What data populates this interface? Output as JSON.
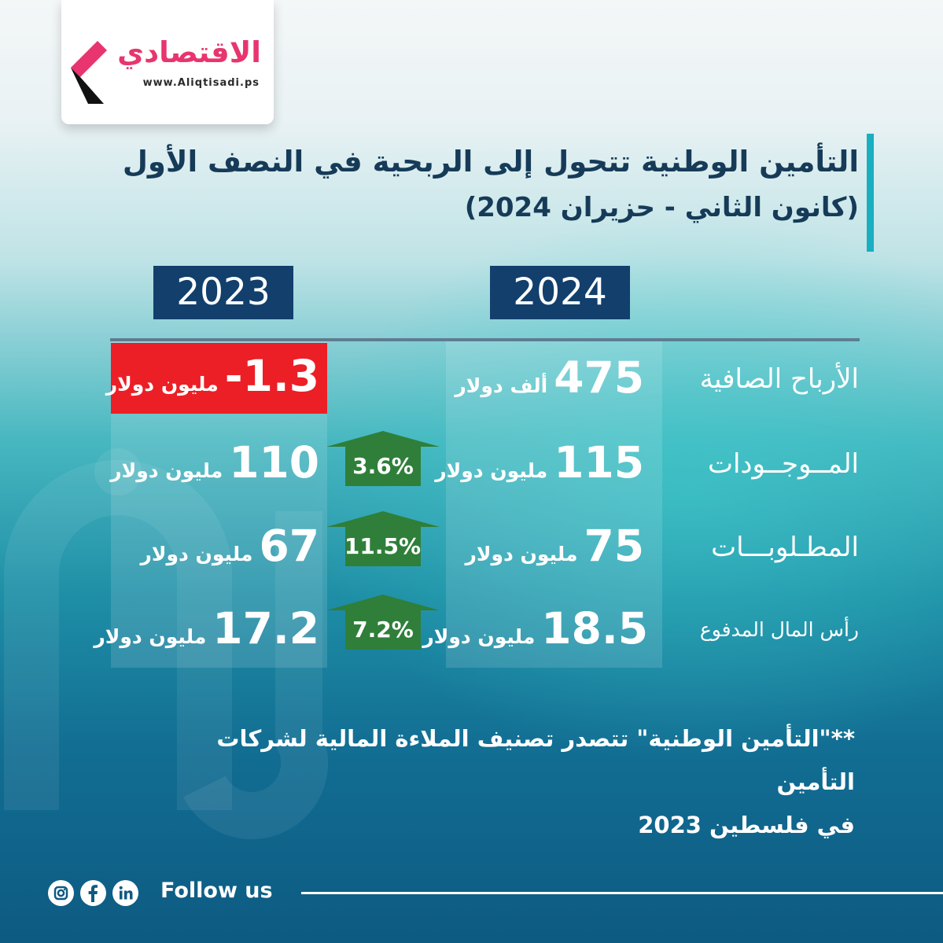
{
  "brand": {
    "name": "الاقتصادي",
    "url": "www.Aliqtisadi.ps",
    "colors": {
      "pink": "#e8356f",
      "navy": "#123f6c",
      "red": "#ec1f26",
      "green": "#2f7f3a"
    }
  },
  "header": {
    "title": "التأمين الوطنية تتحول إلى الربحية في النصف الأول",
    "subtitle": "(كانون الثاني - حزيران 2024)"
  },
  "years": {
    "current": "2024",
    "previous": "2023"
  },
  "rows": [
    {
      "label": "الأرباح الصافية",
      "value_2024": "475",
      "unit_2024": "ألف دولار",
      "value_2023": "1.3-",
      "unit_2023": "مليون دولار",
      "change": null
    },
    {
      "label": "المــوجــودات",
      "value_2024": "115",
      "unit_2024": "مليون دولار",
      "value_2023": "110",
      "unit_2023": "مليون دولار",
      "change": "3.6%"
    },
    {
      "label": "المطـلوبـــات",
      "value_2024": "75",
      "unit_2024": "مليون دولار",
      "value_2023": "67",
      "unit_2023": "مليون دولار",
      "change": "11.5%"
    },
    {
      "label": "رأس المال المدفوع",
      "value_2024": "18.5",
      "unit_2024": "مليون دولار",
      "value_2023": "17.2",
      "unit_2023": "مليون دولار",
      "change": "7.2%"
    }
  ],
  "footnote": {
    "line1": "**\"التأمين الوطنية\" تتصدر تصنيف الملاءة المالية لشركات التأمين",
    "line2": "في فلسطين 2023"
  },
  "footer": {
    "follow_label": "Follow us",
    "icons": [
      "instagram-icon",
      "facebook-icon",
      "linkedin-icon"
    ]
  }
}
